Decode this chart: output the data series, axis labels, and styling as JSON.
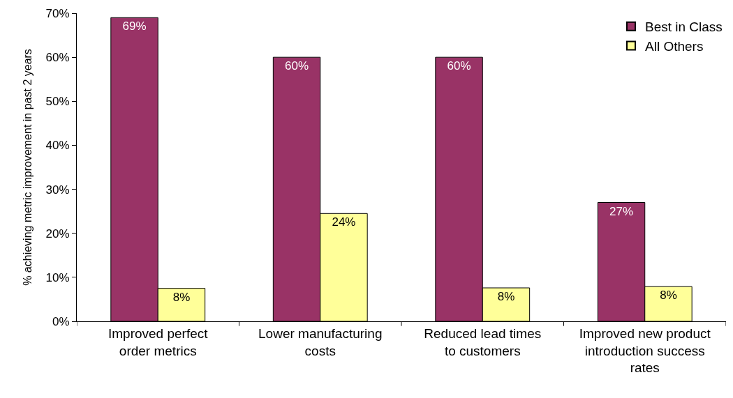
{
  "chart_data": {
    "type": "bar",
    "ylabel": "% achieving metric improvement in past 2 years",
    "categories": [
      "Improved perfect order metrics",
      "Lower manufacturing costs",
      "Reduced lead times to customers",
      "Improved new product introduction success rates"
    ],
    "series": [
      {
        "name": "Best in Class",
        "color": "#993366",
        "values": [
          69,
          60,
          60,
          27
        ],
        "value_labels": [
          "69%",
          "60%",
          "60%",
          "27%"
        ]
      },
      {
        "name": "All Others",
        "color": "#ffff99",
        "values": [
          7.5,
          24.5,
          7.6,
          7.9
        ],
        "value_labels": [
          "8%",
          "24%",
          "8%",
          "8%"
        ]
      }
    ],
    "ylim": [
      0,
      70
    ],
    "yticks": [
      {
        "value": 0,
        "label": "0%"
      },
      {
        "value": 10,
        "label": "10%"
      },
      {
        "value": 20,
        "label": "20%"
      },
      {
        "value": 30,
        "label": "30%"
      },
      {
        "value": 40,
        "label": "40%"
      },
      {
        "value": 50,
        "label": "50%"
      },
      {
        "value": 60,
        "label": "60%"
      },
      {
        "value": 70,
        "label": "70%"
      }
    ],
    "grid": false,
    "legend": "top right"
  }
}
